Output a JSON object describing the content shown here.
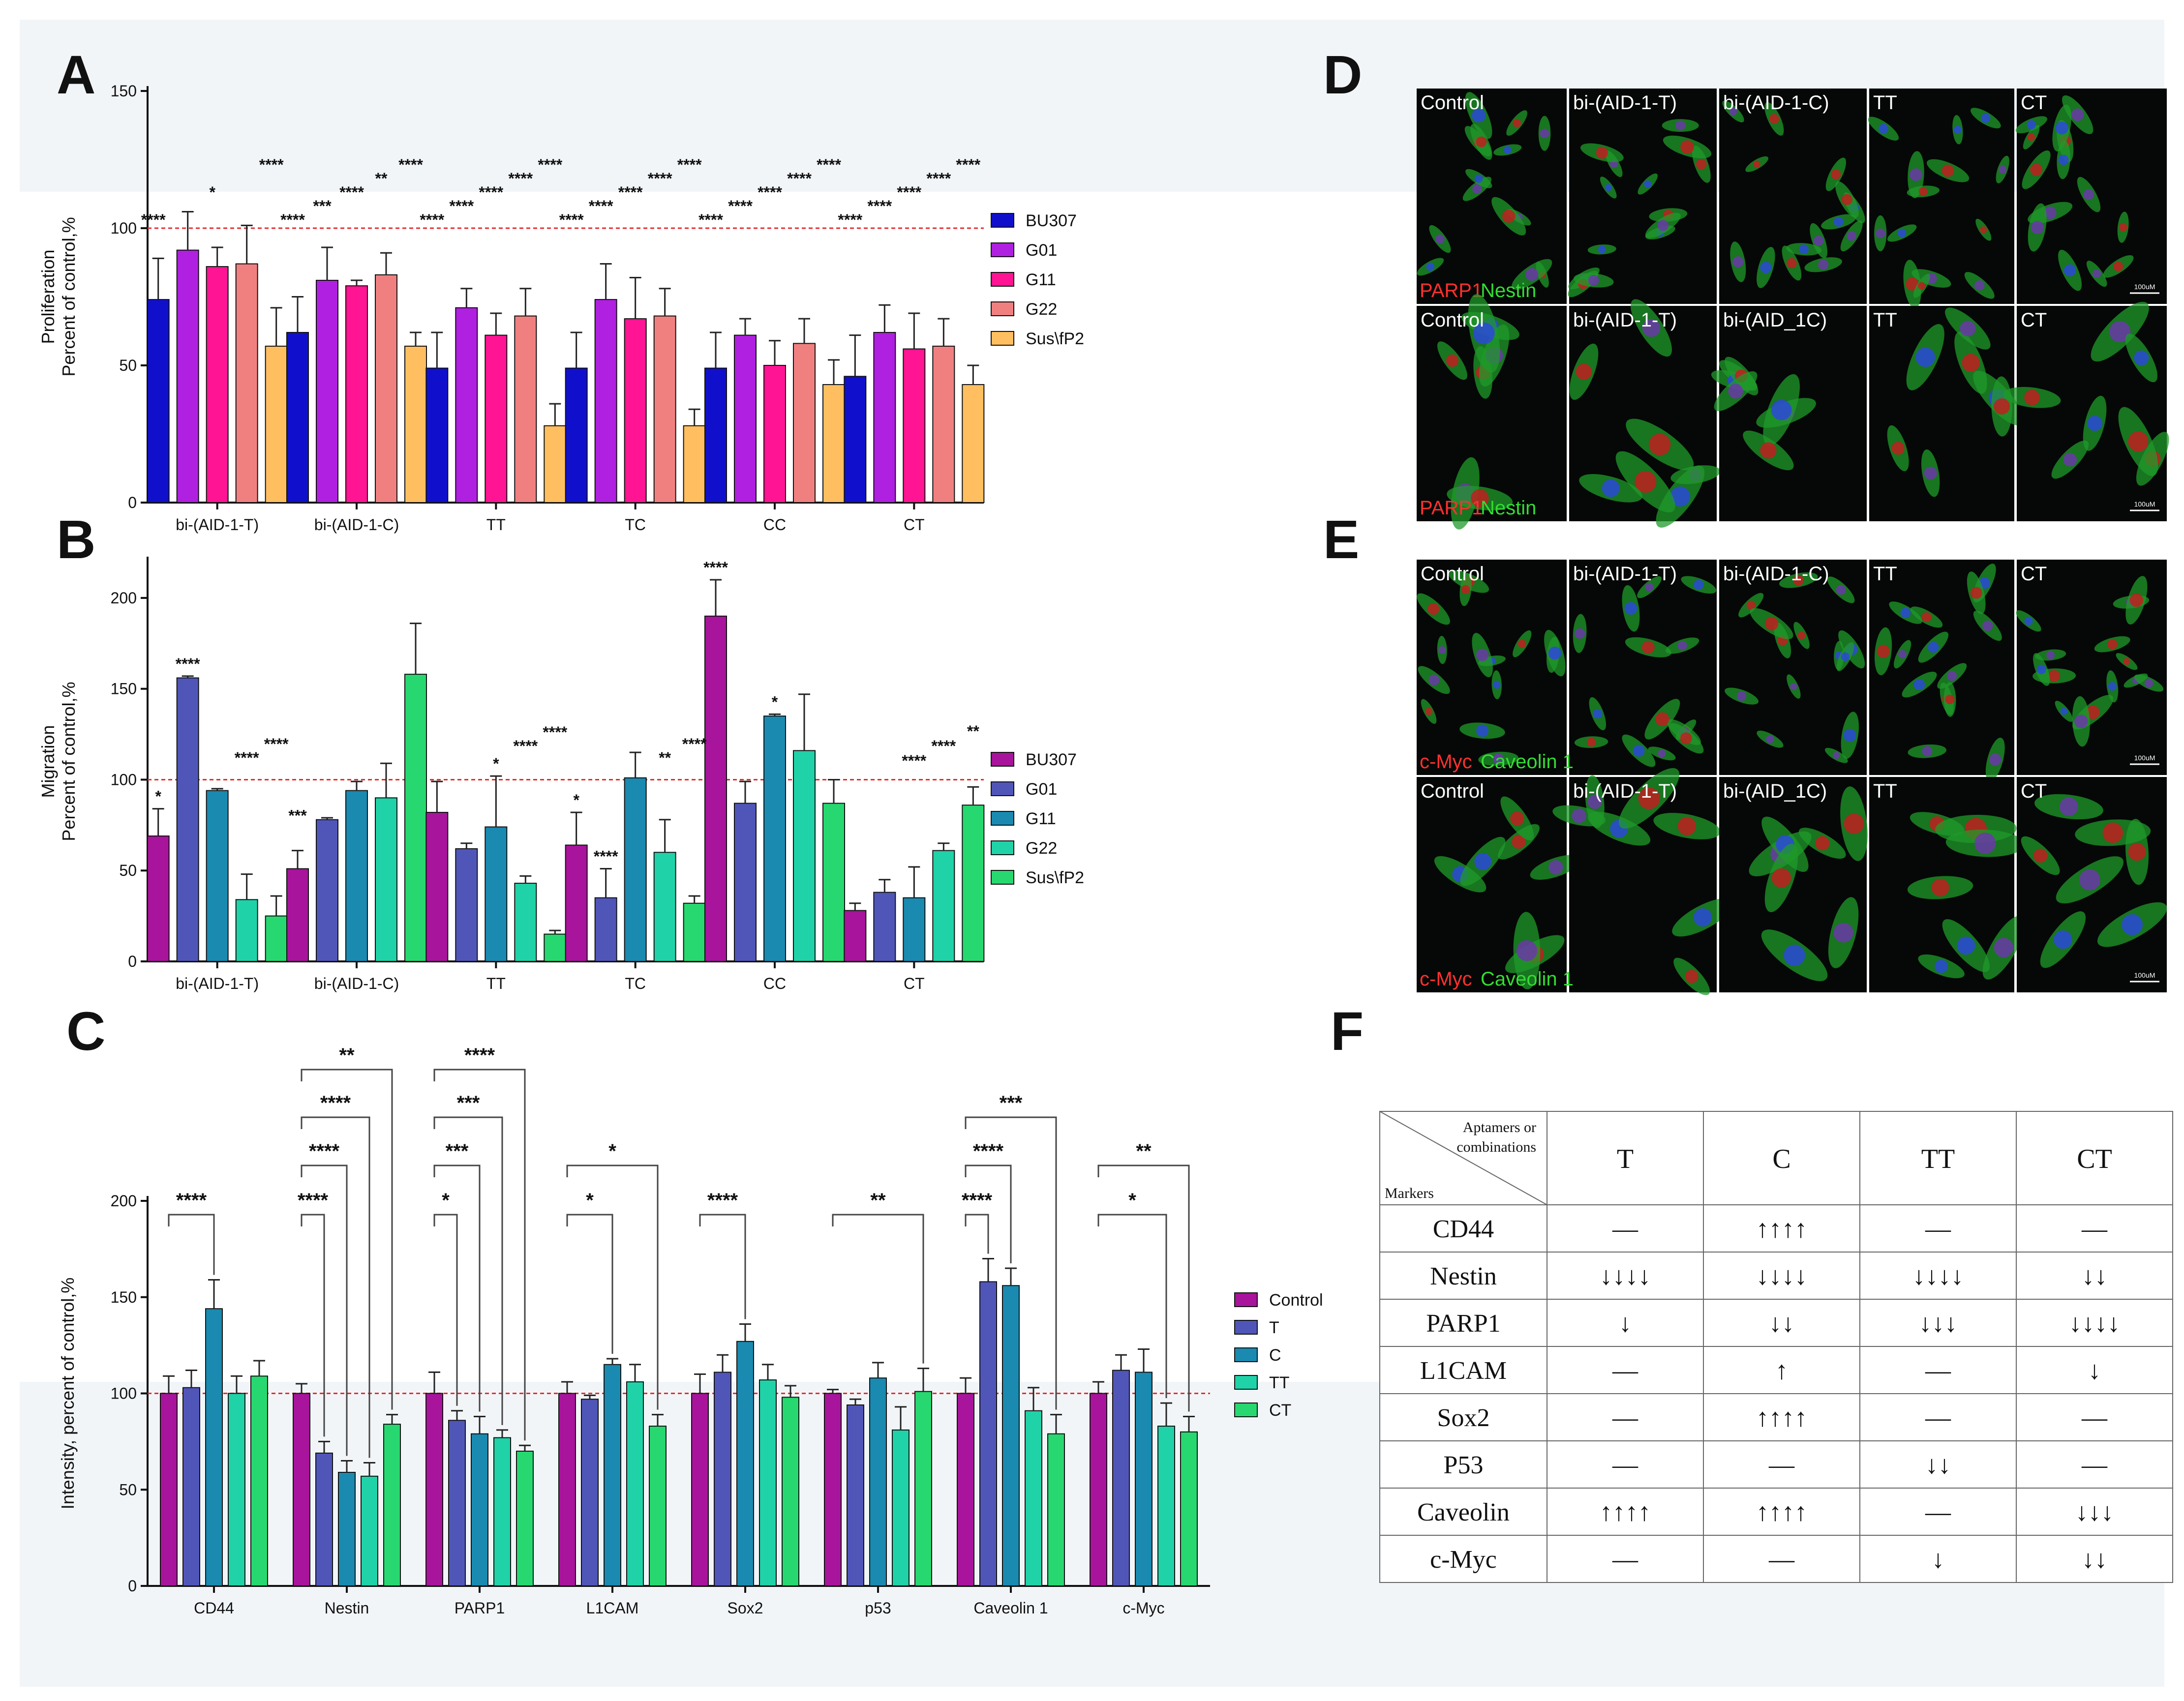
{
  "panel_letters": {
    "a": "A",
    "b": "B",
    "c": "C",
    "d": "D",
    "e": "E",
    "f": "F"
  },
  "colors": {
    "A": [
      "#1010cc",
      "#b020e0",
      "#ff1493",
      "#f08080",
      "#ffbf60"
    ],
    "B": [
      "#a8149b",
      "#5056b8",
      "#1a8ab0",
      "#20d2a8",
      "#27d870"
    ],
    "C": [
      "#a8149b",
      "#5056b8",
      "#1a8ab0",
      "#20d2a8",
      "#27d870"
    ],
    "reference": "#e03030"
  },
  "chart_data": [
    {
      "id": "A",
      "type": "bar",
      "ylabel_line1": "Proliferation",
      "ylabel_line2": "Percent of control,%",
      "ylim": [
        0,
        150
      ],
      "yticks": [
        "0",
        "50",
        "100",
        "150"
      ],
      "reference_line": 100,
      "categories": [
        "bi-(AID-1-T)",
        "bi-(AID-1-C)",
        "TT",
        "TC",
        "CC",
        "CT"
      ],
      "series": [
        {
          "name": "BU307",
          "values": [
            74,
            62,
            49,
            49,
            49,
            46
          ],
          "errors": [
            15,
            13,
            13,
            13,
            13,
            15
          ]
        },
        {
          "name": "G01",
          "values": [
            92,
            81,
            71,
            74,
            61,
            62
          ],
          "errors": [
            14,
            12,
            7,
            13,
            6,
            10
          ]
        },
        {
          "name": "G11",
          "values": [
            86,
            79,
            61,
            67,
            50,
            56
          ],
          "errors": [
            7,
            2,
            8,
            15,
            9,
            13
          ]
        },
        {
          "name": "G22",
          "values": [
            87,
            83,
            68,
            68,
            58,
            57
          ],
          "errors": [
            14,
            8,
            10,
            10,
            9,
            10
          ]
        },
        {
          "name": "Sus\\fP2",
          "values": [
            57,
            57,
            28,
            28,
            43,
            43
          ],
          "errors": [
            14,
            5,
            8,
            6,
            9,
            7
          ]
        }
      ],
      "significance": [
        [
          "****",
          "",
          "*",
          "",
          "****"
        ],
        [
          "****",
          "***",
          "****",
          "**",
          "****"
        ],
        [
          "****",
          "****",
          "****",
          "****",
          "****"
        ],
        [
          "****",
          "****",
          "****",
          "****",
          "****"
        ],
        [
          "****",
          "****",
          "****",
          "****",
          "****"
        ],
        [
          "****",
          "****",
          "****",
          "****",
          "****"
        ]
      ],
      "legend": [
        "BU307",
        "G01",
        "G11",
        "G22",
        "Sus\\fP2"
      ]
    },
    {
      "id": "B",
      "type": "bar",
      "ylabel_line1": "Migration",
      "ylabel_line2": "Percent of control,%",
      "ylim": [
        0,
        220
      ],
      "yticks": [
        "0",
        "50",
        "100",
        "150",
        "200"
      ],
      "reference_line": 100,
      "categories": [
        "bi-(AID-1-T)",
        "bi-(AID-1-C)",
        "TT",
        "TC",
        "CC",
        "CT"
      ],
      "series": [
        {
          "name": "BU307",
          "values": [
            69,
            51,
            82,
            64,
            190,
            28
          ],
          "errors": [
            15,
            10,
            17,
            18,
            20,
            4
          ]
        },
        {
          "name": "G01",
          "values": [
            156,
            78,
            62,
            35,
            87,
            38
          ],
          "errors": [
            1,
            1,
            3,
            16,
            12,
            7
          ]
        },
        {
          "name": "G11",
          "values": [
            94,
            94,
            74,
            101,
            135,
            35
          ],
          "errors": [
            1,
            5,
            28,
            14,
            1,
            17
          ]
        },
        {
          "name": "G22",
          "values": [
            34,
            90,
            43,
            60,
            116,
            61
          ],
          "errors": [
            14,
            19,
            4,
            18,
            31,
            4
          ]
        },
        {
          "name": "Sus\\fP2",
          "values": [
            25,
            158,
            15,
            32,
            87,
            86
          ],
          "errors": [
            11,
            28,
            2,
            4,
            13,
            10
          ]
        }
      ],
      "significance": [
        [
          "*",
          "****",
          "",
          "****",
          "****"
        ],
        [
          "***",
          "",
          "",
          "",
          ""
        ],
        [
          "",
          "",
          "*",
          "****",
          "****"
        ],
        [
          "*",
          "****",
          "",
          "**",
          "****"
        ],
        [
          "****",
          "",
          "*",
          "",
          ""
        ],
        [
          "",
          "",
          "****",
          "****",
          "**"
        ]
      ],
      "legend": [
        "BU307",
        "G01",
        "G11",
        "G22",
        "Sus\\fP2"
      ]
    },
    {
      "id": "C",
      "type": "bar",
      "ylabel": "Intensity, percent of control,%",
      "ylim": [
        0,
        200
      ],
      "yticks": [
        "0",
        "50",
        "100",
        "150",
        "200"
      ],
      "reference_line": 100,
      "categories": [
        "CD44",
        "Nestin",
        "PARP1",
        "L1CAM",
        "Sox2",
        "p53",
        "Caveolin 1",
        "c-Myc"
      ],
      "series": [
        {
          "name": "Control",
          "values": [
            100,
            100,
            100,
            100,
            100,
            100,
            100,
            100
          ],
          "errors": [
            9,
            5,
            11,
            6,
            10,
            2,
            8,
            6
          ]
        },
        {
          "name": "T",
          "values": [
            103,
            69,
            86,
            97,
            111,
            94,
            158,
            112
          ],
          "errors": [
            9,
            6,
            5,
            2,
            9,
            3,
            12,
            8
          ]
        },
        {
          "name": "C",
          "values": [
            144,
            59,
            79,
            115,
            127,
            108,
            156,
            111
          ],
          "errors": [
            15,
            6,
            9,
            3,
            9,
            8,
            9,
            12
          ]
        },
        {
          "name": "TT",
          "values": [
            100,
            57,
            77,
            106,
            107,
            81,
            91,
            83
          ],
          "errors": [
            9,
            7,
            4,
            9,
            8,
            12,
            12,
            12
          ]
        },
        {
          "name": "CT",
          "values": [
            109,
            84,
            70,
            83,
            98,
            101,
            79,
            80
          ],
          "errors": [
            8,
            5,
            3,
            6,
            6,
            12,
            10,
            8
          ]
        }
      ],
      "brackets": [
        [
          {
            "to": 2,
            "label": "****"
          }
        ],
        [
          {
            "to": 1,
            "label": "****"
          },
          {
            "to": 2,
            "label": "****"
          },
          {
            "to": 3,
            "label": "****"
          },
          {
            "to": 4,
            "label": "**"
          }
        ],
        [
          {
            "to": 1,
            "label": "*"
          },
          {
            "to": 2,
            "label": "***"
          },
          {
            "to": 3,
            "label": "***"
          },
          {
            "to": 4,
            "label": "****"
          }
        ],
        [
          {
            "to": 2,
            "label": "*"
          },
          {
            "to": 4,
            "label": "*"
          }
        ],
        [
          {
            "to": 2,
            "label": "****"
          }
        ],
        [
          {
            "to": 4,
            "label": "**"
          }
        ],
        [
          {
            "to": 1,
            "label": "****"
          },
          {
            "to": 2,
            "label": "****"
          },
          {
            "to": 4,
            "label": "***"
          }
        ],
        [
          {
            "to": 3,
            "label": "*"
          },
          {
            "to": 4,
            "label": "**"
          }
        ]
      ],
      "legend": [
        "Control",
        "T",
        "C",
        "TT",
        "CT"
      ]
    }
  ],
  "panel_D": {
    "row1": [
      "Control",
      "bi-(AID-1-T)",
      "bi-(AID-1-C)",
      "TT",
      "CT"
    ],
    "row2": [
      "Control",
      "bi-(AID-1-T)",
      "bi-(AID_1C)",
      "TT",
      "CT"
    ],
    "stain_red": "PARP1",
    "stain_green": "Nestin",
    "scale_top": "100uM",
    "scale_bottom": "100uM"
  },
  "panel_E": {
    "row1": [
      "Control",
      "bi-(AID-1-T)",
      "bi-(AID-1-C)",
      "TT",
      "CT"
    ],
    "row2": [
      "Control",
      "bi-(AID-1-T)",
      "bi-(AID_1C)",
      "TT",
      "CT"
    ],
    "stain_red": "c-Myc",
    "stain_green": "Caveolin 1",
    "scale_top": "100uM",
    "scale_bottom": "100uM"
  },
  "panel_F": {
    "corner_top1": "Aptamers or",
    "corner_top2": "combinations",
    "corner_bottom": "Markers",
    "columns": [
      "T",
      "C",
      "TT",
      "CT"
    ],
    "rows": [
      {
        "marker": "CD44",
        "cells": [
          "—",
          "↑↑↑↑",
          "—",
          "—"
        ]
      },
      {
        "marker": "Nestin",
        "cells": [
          "↓↓↓↓",
          "↓↓↓↓",
          "↓↓↓↓",
          "↓↓"
        ]
      },
      {
        "marker": "PARP1",
        "cells": [
          "↓",
          "↓↓",
          "↓↓↓",
          "↓↓↓↓"
        ]
      },
      {
        "marker": "L1CAM",
        "cells": [
          "—",
          "↑",
          "—",
          "↓"
        ]
      },
      {
        "marker": "Sox2",
        "cells": [
          "—",
          "↑↑↑↑",
          "—",
          "—"
        ]
      },
      {
        "marker": "P53",
        "cells": [
          "—",
          "—",
          "↓↓",
          "—"
        ]
      },
      {
        "marker": "Caveolin",
        "cells": [
          "↑↑↑↑",
          "↑↑↑↑",
          "—",
          "↓↓↓"
        ]
      },
      {
        "marker": "c-Myc",
        "cells": [
          "—",
          "—",
          "↓",
          "↓↓"
        ]
      }
    ]
  }
}
